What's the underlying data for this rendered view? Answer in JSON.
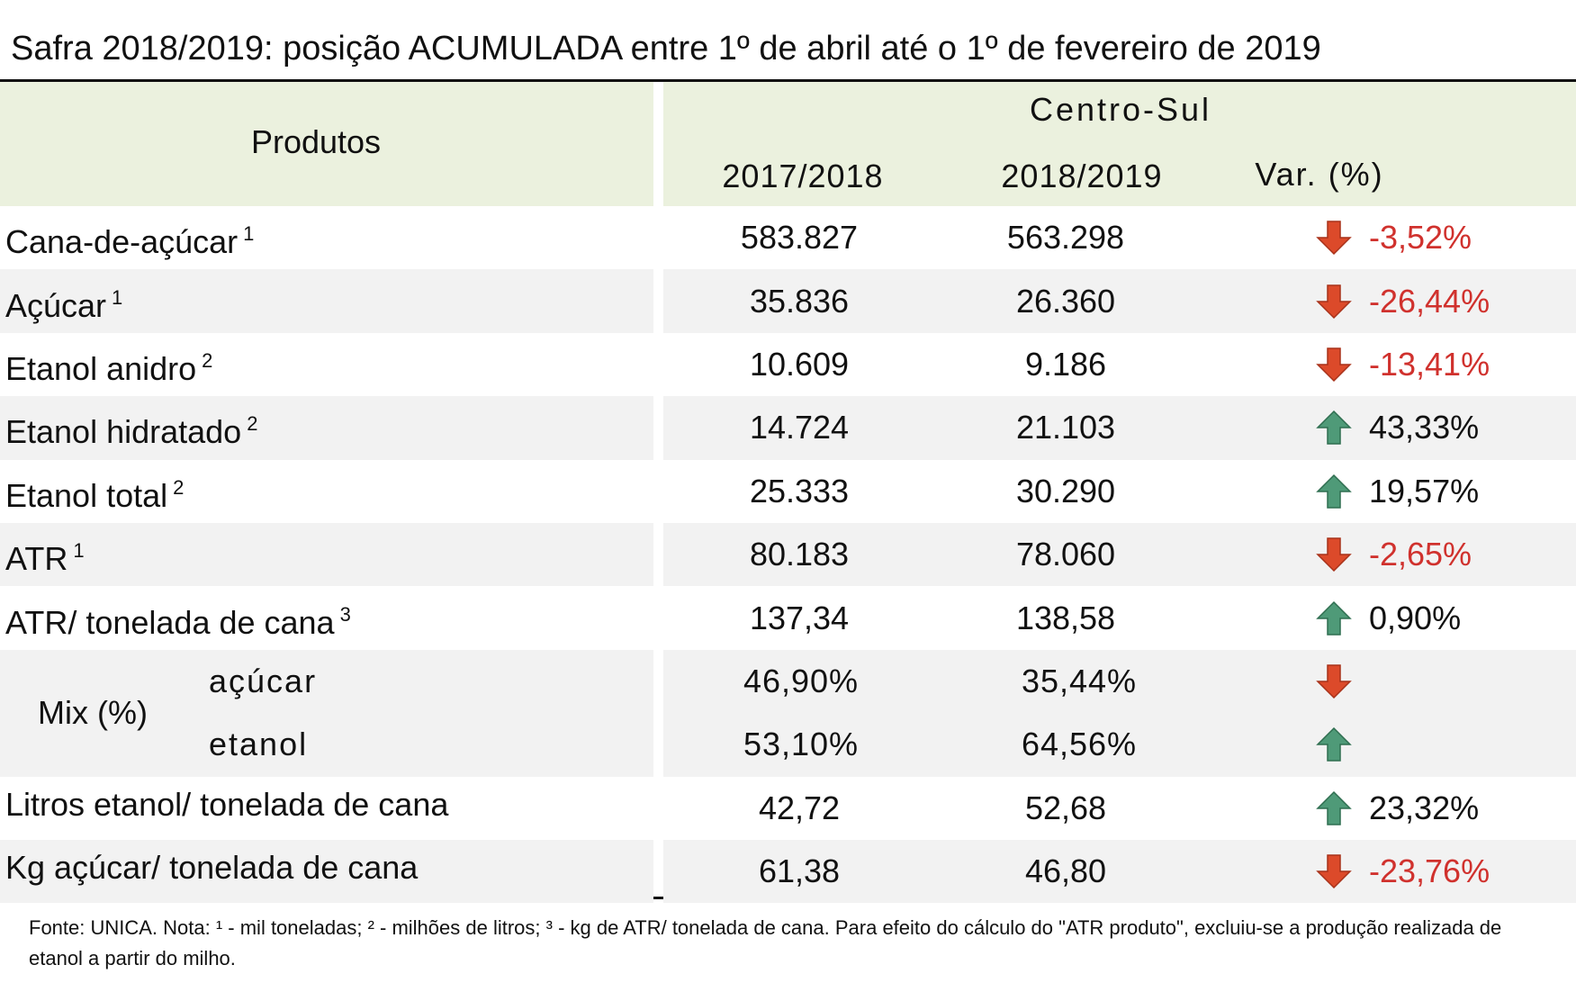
{
  "title": "Safra 2018/2019: posição ACUMULADA entre 1º de abril até o 1º de fevereiro de 2019",
  "header": {
    "products": "Produtos",
    "group": "Centro-Sul",
    "columns": [
      "2017/2018",
      "2018/2019",
      "Var. (%)"
    ]
  },
  "rows": [
    {
      "label": "Cana-de-açúcar",
      "note": "1",
      "v1": "583.827",
      "v2": "563.298",
      "var": "-3,52%",
      "trend": "down"
    },
    {
      "label": "Açúcar",
      "note": "1",
      "v1": "35.836",
      "v2": "26.360",
      "var": "-26,44%",
      "trend": "down"
    },
    {
      "label": "Etanol anidro",
      "note": "2",
      "v1": "10.609",
      "v2": "9.186",
      "var": "-13,41%",
      "trend": "down"
    },
    {
      "label": "Etanol hidratado",
      "note": "2",
      "v1": "14.724",
      "v2": "21.103",
      "var": "43,33%",
      "trend": "up"
    },
    {
      "label": "Etanol total",
      "note": "2",
      "v1": "25.333",
      "v2": "30.290",
      "var": "19,57%",
      "trend": "up"
    },
    {
      "label": "ATR",
      "note": "1",
      "v1": "80.183",
      "v2": "78.060",
      "var": "-2,65%",
      "trend": "down"
    },
    {
      "label": "ATR/ tonelada de cana",
      "note": "3",
      "v1": "137,34",
      "v2": "138,58",
      "var": "0,90%",
      "trend": "up"
    }
  ],
  "mix": {
    "label": "Mix (%)",
    "rows": [
      {
        "label": "açúcar",
        "v1": "46,90%",
        "v2": "35,44%",
        "trend": "down"
      },
      {
        "label": "etanol",
        "v1": "53,10%",
        "v2": "64,56%",
        "trend": "up"
      }
    ]
  },
  "rows_after": [
    {
      "label": "Litros etanol/ tonelada de cana",
      "v1": "42,72",
      "v2": "52,68",
      "var": "23,32%",
      "trend": "up"
    },
    {
      "label": "Kg açúcar/ tonelada de cana",
      "v1": "61,38",
      "v2": "46,80",
      "var": "-23,76%",
      "trend": "down"
    }
  ],
  "footnote": "Fonte: UNICA. Nota: ¹ - mil toneladas; ² - milhões de litros; ³ - kg de ATR/ tonelada de cana. Para efeito do cálculo do \"ATR produto\", excluiu-se a produção realizada de etanol a partir do milho."
}
